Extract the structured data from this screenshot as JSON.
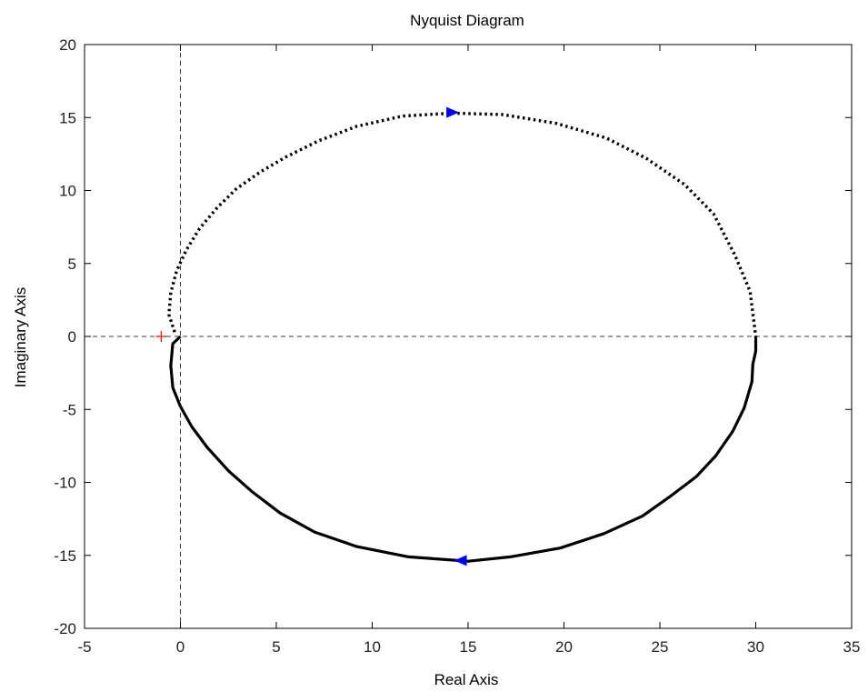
{
  "chart_data": {
    "type": "line",
    "title": "Nyquist Diagram",
    "xlabel": "Real Axis",
    "ylabel": "Imaginary Axis",
    "xlim": [
      -5,
      35
    ],
    "ylim": [
      -20,
      20
    ],
    "xticks": [
      -5,
      0,
      5,
      10,
      15,
      20,
      25,
      30,
      35
    ],
    "yticks": [
      -20,
      -15,
      -10,
      -5,
      0,
      5,
      10,
      15,
      20
    ],
    "xtick_labels": [
      "-5",
      "0",
      "5",
      "10",
      "15",
      "20",
      "25",
      "30",
      "35"
    ],
    "ytick_labels": [
      "-20",
      "-15",
      "-10",
      "-5",
      "0",
      "5",
      "10",
      "15",
      "20"
    ],
    "grid": false,
    "reference_lines": {
      "x": 0,
      "y": 0,
      "style": "dashed"
    },
    "critical_point": {
      "x": -1,
      "y": 0,
      "marker": "+",
      "color": "#ff0000"
    },
    "series": [
      {
        "style": "solid",
        "color": "#000000",
        "x": [
          0.0,
          -0.4,
          -0.5,
          -0.4,
          0.0,
          0.6,
          1.4,
          2.5,
          3.7,
          5.2,
          7.0,
          9.2,
          11.9,
          15.0,
          17.2,
          19.8,
          22.1,
          24.1,
          25.6,
          26.9,
          27.9,
          28.8,
          29.4,
          29.8,
          29.85,
          30.0,
          30.0
        ],
        "y": [
          0.0,
          -0.5,
          -2.0,
          -3.5,
          -4.8,
          -6.2,
          -7.6,
          -9.2,
          -10.6,
          -12.1,
          -13.4,
          -14.4,
          -15.1,
          -15.4,
          -15.1,
          -14.5,
          -13.5,
          -12.3,
          -10.9,
          -9.6,
          -8.2,
          -6.5,
          -4.9,
          -3.1,
          -1.9,
          -1.0,
          0.0
        ]
      },
      {
        "style": "dotted",
        "color": "#000000",
        "x": [
          -0.3,
          -0.6,
          -0.5,
          -0.2,
          0.3,
          1.0,
          1.9,
          2.9,
          4.2,
          5.5,
          7.2,
          9.2,
          11.6,
          14.2,
          16.8,
          19.6,
          22.2,
          24.3,
          26.3,
          27.8,
          28.9,
          29.7,
          30.0
        ],
        "y": [
          0.3,
          1.5,
          3.0,
          4.5,
          5.9,
          7.4,
          8.8,
          10.1,
          11.3,
          12.3,
          13.4,
          14.4,
          15.1,
          15.3,
          15.2,
          14.6,
          13.6,
          12.2,
          10.4,
          8.4,
          5.6,
          3.1,
          0.0
        ]
      }
    ],
    "direction_arrows": [
      {
        "x": 14.2,
        "y": 15.35,
        "direction": "right",
        "color": "#0000ff"
      },
      {
        "x": 14.6,
        "y": -15.35,
        "direction": "left",
        "color": "#0000ff"
      }
    ]
  }
}
